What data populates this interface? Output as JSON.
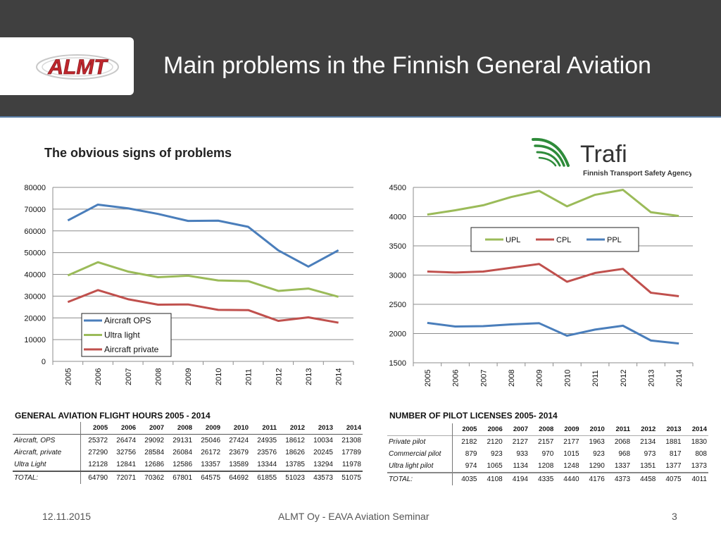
{
  "header": {
    "title": "Main problems in the Finnish General Aviation",
    "logo_text": "ALMT"
  },
  "subtitle": "The obvious signs of problems",
  "trafi": {
    "name": "Trafi",
    "tagline": "Finnish Transport Safety Agency"
  },
  "chart_data": [
    {
      "type": "line",
      "x": [
        "2005",
        "2006",
        "2007",
        "2008",
        "2009",
        "2010",
        "2011",
        "2012",
        "2013",
        "2014"
      ],
      "ylim": [
        0,
        80000
      ],
      "yticks": [
        0,
        10000,
        20000,
        30000,
        40000,
        50000,
        60000,
        70000,
        80000
      ],
      "grid": true,
      "legend": "bottom-left",
      "series": [
        {
          "name": "Aircraft OPS",
          "color": "#4a7ebb",
          "values": [
            64790,
            72071,
            70362,
            67801,
            64575,
            64692,
            61855,
            51023,
            43573,
            51075
          ]
        },
        {
          "name": "Ultra light",
          "color": "#9bbb59",
          "values": [
            39500,
            45600,
            41300,
            38700,
            39400,
            37200,
            36900,
            32400,
            33500,
            29700
          ]
        },
        {
          "name": "Aircraft private",
          "color": "#c0504d",
          "values": [
            27290,
            32756,
            28584,
            26084,
            26172,
            23679,
            23576,
            18626,
            20245,
            17789
          ]
        }
      ]
    },
    {
      "type": "line",
      "x": [
        "2005",
        "2006",
        "2007",
        "2008",
        "2009",
        "2010",
        "2011",
        "2012",
        "2013",
        "2014"
      ],
      "ylim": [
        1500,
        4500
      ],
      "yticks": [
        1500,
        2000,
        2500,
        3000,
        3500,
        4000,
        4500
      ],
      "grid": true,
      "legend": "top-right",
      "series": [
        {
          "name": "UPL",
          "color": "#9bbb59",
          "values": [
            4035,
            4108,
            4194,
            4335,
            4440,
            4176,
            4373,
            4458,
            4075,
            4011
          ]
        },
        {
          "name": "CPL",
          "color": "#c0504d",
          "values": [
            3061,
            3043,
            3060,
            3125,
            3190,
            2886,
            3036,
            3106,
            2698,
            2638
          ]
        },
        {
          "name": "PPL",
          "color": "#4a7ebb",
          "values": [
            2182,
            2120,
            2127,
            2157,
            2177,
            1963,
            2068,
            2134,
            1881,
            1830
          ]
        }
      ]
    }
  ],
  "table1": {
    "title": "GENERAL AVIATION FLIGHT HOURS 2005 - 2014",
    "years": [
      "2005",
      "2006",
      "2007",
      "2008",
      "2009",
      "2010",
      "2011",
      "2012",
      "2013",
      "2014"
    ],
    "rows": [
      {
        "label": "Aircraft, OPS",
        "values": [
          "25372",
          "26474",
          "29092",
          "29131",
          "25046",
          "27424",
          "24935",
          "18612",
          "10034",
          "21308"
        ]
      },
      {
        "label": "Aircraft, private",
        "values": [
          "27290",
          "32756",
          "28584",
          "26084",
          "26172",
          "23679",
          "23576",
          "18626",
          "20245",
          "17789"
        ]
      },
      {
        "label": "Ultra Light",
        "values": [
          "12128",
          "12841",
          "12686",
          "12586",
          "13357",
          "13589",
          "13344",
          "13785",
          "13294",
          "11978"
        ]
      },
      {
        "label": "TOTAL:",
        "values": [
          "64790",
          "72071",
          "70362",
          "67801",
          "64575",
          "64692",
          "61855",
          "51023",
          "43573",
          "51075"
        ]
      }
    ]
  },
  "table2": {
    "title": "NUMBER OF PILOT LICENSES 2005- 2014",
    "years": [
      "2005",
      "2006",
      "2007",
      "2008",
      "2009",
      "2010",
      "2011",
      "2012",
      "2013",
      "2014"
    ],
    "rows": [
      {
        "label": "Private pilot",
        "values": [
          "2182",
          "2120",
          "2127",
          "2157",
          "2177",
          "1963",
          "2068",
          "2134",
          "1881",
          "1830"
        ]
      },
      {
        "label": "Commercial pilot",
        "values": [
          "879",
          "923",
          "933",
          "970",
          "1015",
          "923",
          "968",
          "973",
          "817",
          "808"
        ]
      },
      {
        "label": "Ultra light pilot",
        "values": [
          "974",
          "1065",
          "1134",
          "1208",
          "1248",
          "1290",
          "1337",
          "1351",
          "1377",
          "1373"
        ]
      },
      {
        "label": "TOTAL:",
        "values": [
          "4035",
          "4108",
          "4194",
          "4335",
          "4440",
          "4176",
          "4373",
          "4458",
          "4075",
          "4011"
        ]
      }
    ]
  },
  "footer": {
    "date": "12.11.2015",
    "center": "ALMT Oy - EAVA Aviation Seminar",
    "page": "3"
  }
}
